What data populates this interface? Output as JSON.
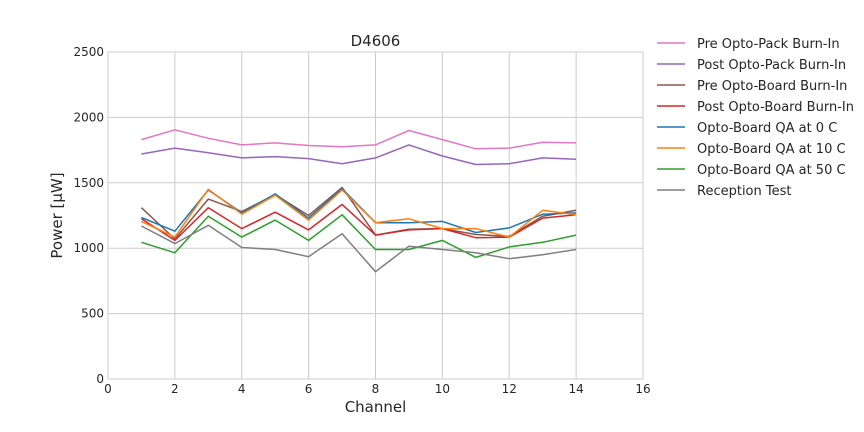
{
  "chart_data": {
    "type": "line",
    "title": "D4606",
    "xlabel": "Channel",
    "ylabel": "Power [μW]",
    "xlim": [
      0,
      16
    ],
    "ylim": [
      0,
      2500
    ],
    "xticks": [
      0,
      2,
      4,
      6,
      8,
      10,
      12,
      14,
      16
    ],
    "yticks": [
      0,
      500,
      1000,
      1500,
      2000,
      2500
    ],
    "grid": true,
    "legend_position": "outside-right",
    "x": [
      1,
      2,
      3,
      4,
      5,
      6,
      7,
      8,
      9,
      10,
      11,
      12,
      13,
      14
    ],
    "series": [
      {
        "name": "Pre Opto-Pack Burn-In",
        "color": "#e377c2",
        "values": [
          1830,
          1905,
          1840,
          1790,
          1805,
          1785,
          1775,
          1790,
          1900,
          1830,
          1760,
          1765,
          1810,
          1805
        ]
      },
      {
        "name": "Post Opto-Pack Burn-In",
        "color": "#9467bd",
        "values": [
          1720,
          1765,
          1730,
          1690,
          1700,
          1685,
          1645,
          1690,
          1790,
          1705,
          1640,
          1645,
          1690,
          1680
        ]
      },
      {
        "name": "Pre Opto-Board Burn-In",
        "color": "#8c564b",
        "values": [
          1310,
          1070,
          1375,
          1280,
          1410,
          1250,
          1465,
          1100,
          1145,
          1150,
          1105,
          1090,
          1245,
          1290
        ]
      },
      {
        "name": "Post Opto-Board Burn-In",
        "color": "#d62728",
        "values": [
          1225,
          1060,
          1310,
          1150,
          1275,
          1140,
          1335,
          1100,
          1140,
          1150,
          1080,
          1085,
          1230,
          1255
        ]
      },
      {
        "name": "Opto-Board QA at 0 C",
        "color": "#1f77b4",
        "values": [
          1235,
          1130,
          1445,
          1270,
          1415,
          1230,
          1455,
          1195,
          1195,
          1205,
          1120,
          1155,
          1260,
          1270
        ]
      },
      {
        "name": "Opto-Board QA at 10 C",
        "color": "#ff7f0e",
        "values": [
          1205,
          1085,
          1450,
          1260,
          1405,
          1215,
          1445,
          1195,
          1225,
          1150,
          1150,
          1085,
          1290,
          1255
        ]
      },
      {
        "name": "Opto-Board QA at 50 C",
        "color": "#2ca02c",
        "values": [
          1045,
          965,
          1245,
          1085,
          1215,
          1060,
          1255,
          990,
          990,
          1060,
          930,
          1010,
          1045,
          1100
        ]
      },
      {
        "name": "Reception Test",
        "color": "#7f7f7f",
        "values": [
          1170,
          1035,
          1175,
          1005,
          990,
          935,
          1110,
          820,
          1015,
          990,
          965,
          920,
          950,
          990
        ]
      }
    ]
  }
}
